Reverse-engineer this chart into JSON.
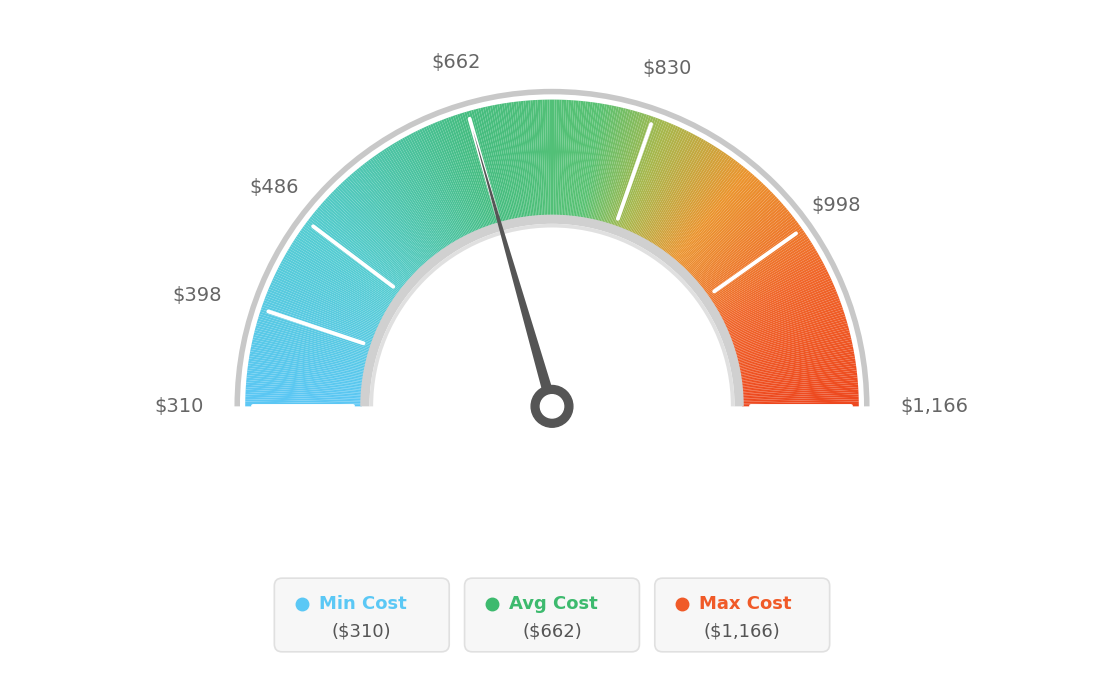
{
  "min_val": 310,
  "max_val": 1166,
  "avg_val": 662,
  "labels": [
    "$310",
    "$398",
    "$486",
    "$662",
    "$830",
    "$998",
    "$1,166"
  ],
  "label_values": [
    310,
    398,
    486,
    662,
    830,
    998,
    1166
  ],
  "legend": [
    {
      "label": "Min Cost",
      "value": "($310)",
      "color": "#5bc8f5"
    },
    {
      "label": "Avg Cost",
      "value": "($662)",
      "color": "#3dba6e"
    },
    {
      "label": "Max Cost",
      "value": "($1,166)",
      "color": "#f05a28"
    }
  ],
  "bg_color": "#ffffff",
  "outer_r": 1.0,
  "inner_r": 0.62,
  "needle_color": "#555555",
  "label_color": "#666666",
  "color_stops": [
    [
      0.0,
      [
        0.36,
        0.78,
        0.96
      ]
    ],
    [
      0.2,
      [
        0.33,
        0.8,
        0.82
      ]
    ],
    [
      0.41,
      [
        0.27,
        0.74,
        0.5
      ]
    ],
    [
      0.55,
      [
        0.35,
        0.76,
        0.45
      ]
    ],
    [
      0.62,
      [
        0.65,
        0.72,
        0.3
      ]
    ],
    [
      0.72,
      [
        0.92,
        0.58,
        0.18
      ]
    ],
    [
      0.85,
      [
        0.94,
        0.4,
        0.16
      ]
    ],
    [
      1.0,
      [
        0.93,
        0.28,
        0.12
      ]
    ]
  ]
}
